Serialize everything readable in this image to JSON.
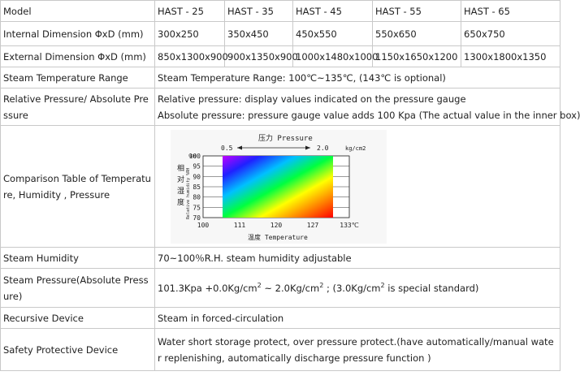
{
  "table": {
    "model": {
      "label": "Model",
      "values": [
        "HAST - 25",
        "HAST - 35",
        "HAST - 45",
        "HAST  - 55",
        "HAST - 65"
      ]
    },
    "internal": {
      "label": "Internal Dimension ΦxD (mm)",
      "values": [
        "300x250",
        "350x450",
        "450x550",
        "550x650",
        "650x750"
      ]
    },
    "external": {
      "label": "External Dimension ΦxD (mm)",
      "values": [
        "850x1300x900",
        "900x1350x900",
        "1000x1480x1000",
        "1150x1650x1200",
        "1300x1800x1350"
      ]
    },
    "steam_temp": {
      "label": "Steam Temperature Range",
      "value": "Steam Temperature Range: 100℃~135℃, (143℃ is optional)"
    },
    "pressure": {
      "label": "Relative Pressure/ Absolute Pressure",
      "line1": "Relative pressure:  display values  indicated on the  pressure gauge",
      "line2": "Absolute pressure:  pressure gauge value adds 100 Kpa (The actual value in the inner box)"
    },
    "comparison": {
      "label": "Comparison Table of Temperature, Humidity , Pressure"
    },
    "humidity": {
      "label": "Steam Humidity",
      "value": "70~100％R.H. steam humidity adjustable"
    },
    "steam_pressure": {
      "label": "Steam Pressure(Absolute Pressure)",
      "part1": "101.3Kpa +0.0Kg/cm",
      "sup1": "2",
      "part2": " ~ 2.0Kg/cm",
      "sup2": "2",
      "part3": " ; (3.0Kg/cm",
      "sup3": "2",
      "part4": "  is special standard)"
    },
    "recursive": {
      "label": "Recursive Device",
      "value": "Steam in forced-circulation"
    },
    "safety": {
      "label": "Safety Protective Device",
      "value": "Water short storage protect, over pressure protect.(have automatically/manual water replenishing, automatically discharge pressure function )"
    }
  },
  "chart_data": {
    "type": "heatmap",
    "title": "压力 Pressure",
    "pressure_range": [
      "0.5",
      "2.0"
    ],
    "pressure_unit": "kg/cm2",
    "ylabel_cn": "相对湿度",
    "ylabel_en": "Relative humidity %RH",
    "ylabel_unit": "%RH",
    "xlabel": "温度  Temperature",
    "y_ticks": [
      "100",
      "95",
      "90",
      "85",
      "80",
      "75",
      "70"
    ],
    "x_ticks": [
      "100",
      "111",
      "120",
      "127",
      "133℃"
    ],
    "ylim": [
      70,
      100
    ],
    "xlim": [
      100,
      133
    ],
    "gradient_colors": [
      "#c000ff",
      "#2020ff",
      "#00c0ff",
      "#00ff40",
      "#ffff00",
      "#ff8000",
      "#ff0000"
    ]
  }
}
